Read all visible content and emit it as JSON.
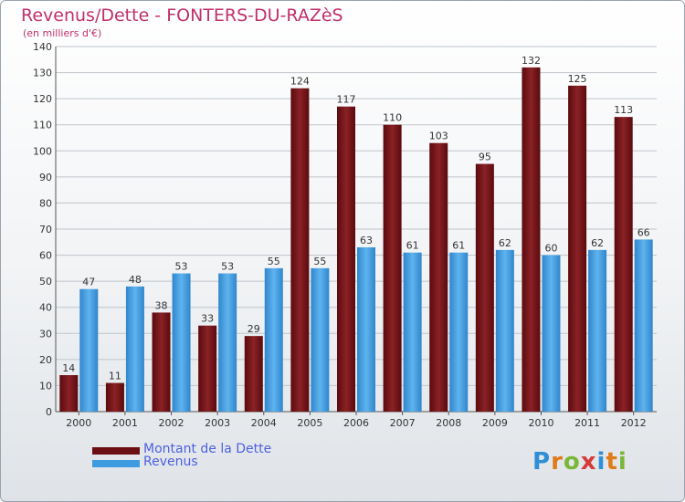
{
  "header": {
    "title": "Revenus/Dette - FONTERS-DU-RAZèS",
    "subtitle": "(en milliers d'€)"
  },
  "legend": {
    "items": [
      {
        "label": "Montant de la Dette",
        "color": "#6b0f14"
      },
      {
        "label": "Revenus",
        "color": "#3f9be0"
      }
    ]
  },
  "logo": {
    "text": "Proxiti",
    "letters": [
      {
        "char": "P",
        "color": "#2e8fd6"
      },
      {
        "char": "r",
        "color": "#e07b1a"
      },
      {
        "char": "o",
        "color": "#7ab63a"
      },
      {
        "char": "x",
        "color": "#d63a3a"
      },
      {
        "char": "i",
        "color": "#2e8fd6"
      },
      {
        "char": "t",
        "color": "#e07b1a"
      },
      {
        "char": "i",
        "color": "#7ab63a"
      }
    ]
  },
  "chart_data": {
    "type": "bar",
    "categories": [
      "2000",
      "2001",
      "2002",
      "2003",
      "2004",
      "2005",
      "2006",
      "2007",
      "2008",
      "2009",
      "2010",
      "2011",
      "2012"
    ],
    "series": [
      {
        "name": "Montant de la Dette",
        "color": "#6b0f14",
        "values": [
          14,
          11,
          38,
          33,
          29,
          124,
          117,
          110,
          103,
          95,
          132,
          125,
          113
        ]
      },
      {
        "name": "Revenus",
        "color": "#3f9be0",
        "values": [
          47,
          48,
          53,
          53,
          55,
          55,
          63,
          61,
          61,
          62,
          60,
          62,
          66
        ]
      }
    ],
    "title": "Revenus/Dette - FONTERS-DU-RAZèS",
    "subtitle": "(en milliers d'€)",
    "xlabel": "",
    "ylabel": "",
    "ylim": [
      0,
      140
    ],
    "yticks": [
      0,
      10,
      20,
      30,
      40,
      50,
      60,
      70,
      80,
      90,
      100,
      110,
      120,
      130,
      140
    ],
    "grid": true,
    "legend_position": "bottom-left"
  }
}
